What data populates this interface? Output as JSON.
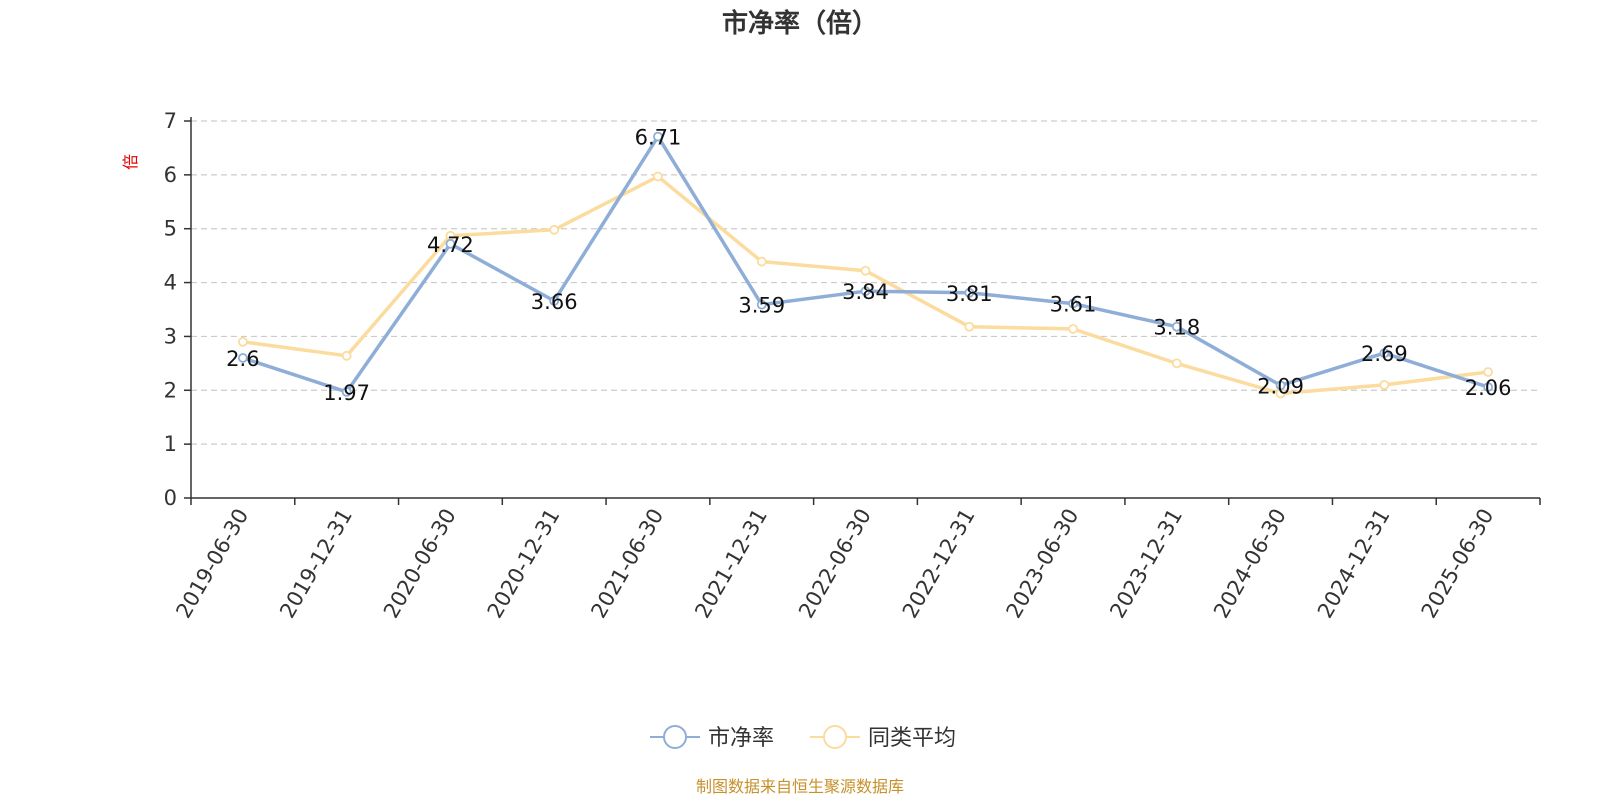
{
  "chart_data": {
    "type": "line",
    "title": "市净率（倍）",
    "ylabel": "倍",
    "ylim": [
      0,
      7
    ],
    "yticks": [
      0,
      1,
      2,
      3,
      4,
      5,
      6,
      7
    ],
    "grid": true,
    "legend_position": "bottom",
    "categories": [
      "2019-06-30",
      "2019-12-31",
      "2020-06-30",
      "2020-12-31",
      "2021-06-30",
      "2021-12-31",
      "2022-06-30",
      "2022-12-31",
      "2023-06-30",
      "2023-12-31",
      "2024-06-30",
      "2024-12-31",
      "2025-06-30"
    ],
    "series": [
      {
        "name": "市净率",
        "color": "#8eaed8",
        "values": [
          2.6,
          1.97,
          4.72,
          3.66,
          6.71,
          3.59,
          3.84,
          3.81,
          3.61,
          3.18,
          2.09,
          2.69,
          2.06
        ],
        "show_labels": true
      },
      {
        "name": "同类平均",
        "color": "#fbdc9e",
        "values": [
          2.9,
          2.64,
          4.87,
          4.98,
          5.97,
          4.39,
          4.22,
          3.18,
          3.14,
          2.5,
          1.94,
          2.1,
          2.34
        ],
        "show_labels": false
      }
    ]
  },
  "footer": {
    "source": "制图数据来自恒生聚源数据库"
  }
}
